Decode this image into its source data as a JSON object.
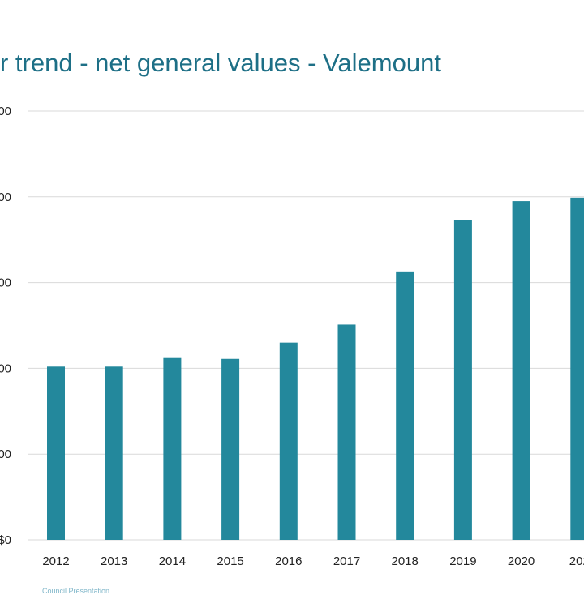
{
  "title": "r trend - net general values - Valemount",
  "footer": "Council Presentation",
  "colors": {
    "bar": "#23889c",
    "grid": "#d9d9d9",
    "title": "#1d6f86"
  },
  "chart_data": {
    "type": "bar",
    "title": "r trend - net general values - Valemount",
    "categories": [
      "2012",
      "2013",
      "2014",
      "2015",
      "2016",
      "2017",
      "2018",
      "2019",
      "2020",
      "202"
    ],
    "values": [
      202,
      202,
      212,
      211,
      230,
      251,
      313,
      373,
      395,
      399
    ],
    "ylim": [
      0,
      500
    ],
    "y_ticks": [
      0,
      100,
      200,
      300,
      400,
      500
    ],
    "y_tick_labels": [
      "$0",
      "00",
      "00",
      "00",
      "00",
      "00"
    ],
    "xlabel": "",
    "ylabel": "",
    "grid": true
  }
}
